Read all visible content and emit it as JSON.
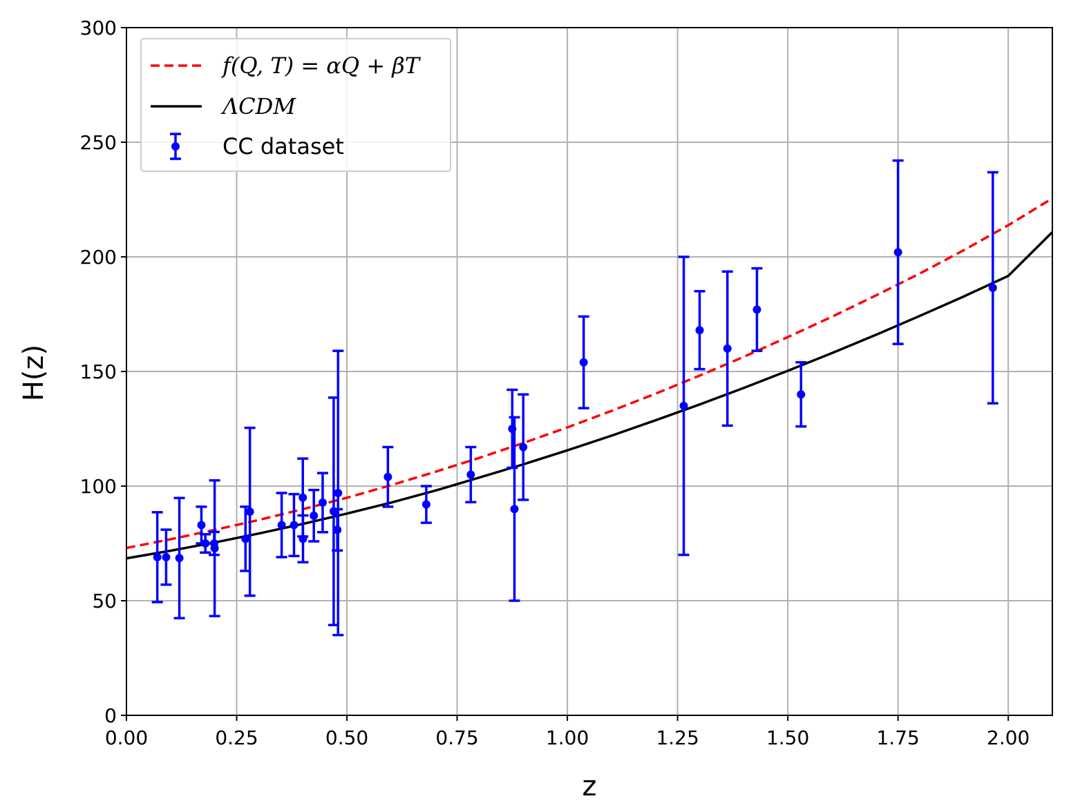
{
  "chart_data": {
    "type": "scatter",
    "xlabel": "z",
    "ylabel": "H(z)",
    "xlim": [
      0,
      2.1
    ],
    "ylim": [
      0,
      300
    ],
    "x_ticks": [
      "0.00",
      "0.25",
      "0.50",
      "0.75",
      "1.00",
      "1.25",
      "1.50",
      "1.75",
      "2.00"
    ],
    "y_ticks": [
      "0",
      "50",
      "100",
      "150",
      "200",
      "250",
      "300"
    ],
    "grid": true,
    "legend_position": "top-left",
    "legend": [
      {
        "label": "f(Q, T) = αQ + βT",
        "style": "dashed-line",
        "color": "#ff0000"
      },
      {
        "label": "ΛCDM",
        "style": "solid-line",
        "color": "#000000"
      },
      {
        "label": "CC dataset",
        "style": "errorbar-marker",
        "color": "#0000ff"
      }
    ],
    "series": [
      {
        "name": "f(Q, T) = αQ + βT",
        "kind": "line",
        "color": "#ff0000",
        "x": [
          0,
          0.1,
          0.2,
          0.3,
          0.4,
          0.5,
          0.6,
          0.7,
          0.8,
          0.9,
          1.0,
          1.1,
          1.2,
          1.3,
          1.4,
          1.5,
          1.6,
          1.7,
          1.8,
          1.9,
          2.0,
          2.1
        ],
        "y": [
          73,
          76.8,
          80.9,
          85.2,
          89.9,
          94.9,
          100.4,
          106.2,
          112.3,
          118.8,
          125.6,
          132.8,
          140.3,
          148.2,
          156.4,
          165.0,
          173.9,
          183.2,
          192.8,
          203.0,
          213.8,
          225.5
        ]
      },
      {
        "name": "ΛCDM",
        "kind": "line",
        "color": "#000000",
        "x": [
          0,
          0.1,
          0.2,
          0.3,
          0.4,
          0.5,
          0.6,
          0.7,
          0.8,
          0.9,
          1.0,
          1.1,
          1.2,
          1.3,
          1.4,
          1.5,
          1.6,
          1.7,
          1.8,
          1.9,
          2.0,
          2.1
        ],
        "y": [
          68.5,
          71.8,
          75.4,
          79.3,
          83.5,
          88.0,
          92.8,
          98.0,
          103.7,
          109.5,
          115.6,
          122.0,
          128.7,
          135.6,
          142.8,
          150.3,
          158.0,
          166.0,
          174.3,
          182.8,
          191.7,
          210.8
        ]
      },
      {
        "name": "CC dataset",
        "kind": "errorbar",
        "color": "#0000ff",
        "points": [
          {
            "x": 0.07,
            "y": 69,
            "err": 19.6
          },
          {
            "x": 0.09,
            "y": 69,
            "err": 12
          },
          {
            "x": 0.12,
            "y": 68.6,
            "err": 26.2
          },
          {
            "x": 0.17,
            "y": 83,
            "err": 8
          },
          {
            "x": 0.179,
            "y": 75,
            "err": 4
          },
          {
            "x": 0.199,
            "y": 75,
            "err": 5
          },
          {
            "x": 0.2,
            "y": 72.9,
            "err": 29.6
          },
          {
            "x": 0.27,
            "y": 77,
            "err": 14
          },
          {
            "x": 0.28,
            "y": 88.8,
            "err": 36.6
          },
          {
            "x": 0.352,
            "y": 83,
            "err": 14
          },
          {
            "x": 0.38,
            "y": 83,
            "err": 13.5
          },
          {
            "x": 0.4,
            "y": 95,
            "err": 17
          },
          {
            "x": 0.4004,
            "y": 77,
            "err": 10.2
          },
          {
            "x": 0.425,
            "y": 87.1,
            "err": 11.2
          },
          {
            "x": 0.445,
            "y": 92.8,
            "err": 12.9
          },
          {
            "x": 0.47,
            "y": 89,
            "err": 49.6
          },
          {
            "x": 0.4783,
            "y": 80.9,
            "err": 9
          },
          {
            "x": 0.48,
            "y": 97,
            "err": 62
          },
          {
            "x": 0.593,
            "y": 104,
            "err": 13
          },
          {
            "x": 0.68,
            "y": 92,
            "err": 8
          },
          {
            "x": 0.781,
            "y": 105,
            "err": 12
          },
          {
            "x": 0.875,
            "y": 125,
            "err": 17
          },
          {
            "x": 0.88,
            "y": 90,
            "err": 40
          },
          {
            "x": 0.9,
            "y": 117,
            "err": 23
          },
          {
            "x": 1.037,
            "y": 154,
            "err": 20
          },
          {
            "x": 1.3,
            "y": 168,
            "err": 17
          },
          {
            "x": 1.363,
            "y": 160,
            "err": 33.6
          },
          {
            "x": 1.43,
            "y": 177,
            "err": 18
          },
          {
            "x": 1.53,
            "y": 140,
            "err": 14
          },
          {
            "x": 1.75,
            "y": 202,
            "err": 40
          },
          {
            "x": 1.965,
            "y": 186.5,
            "err": 50.4
          },
          {
            "x": 1.264,
            "y": 135,
            "err": 65
          }
        ]
      }
    ]
  }
}
